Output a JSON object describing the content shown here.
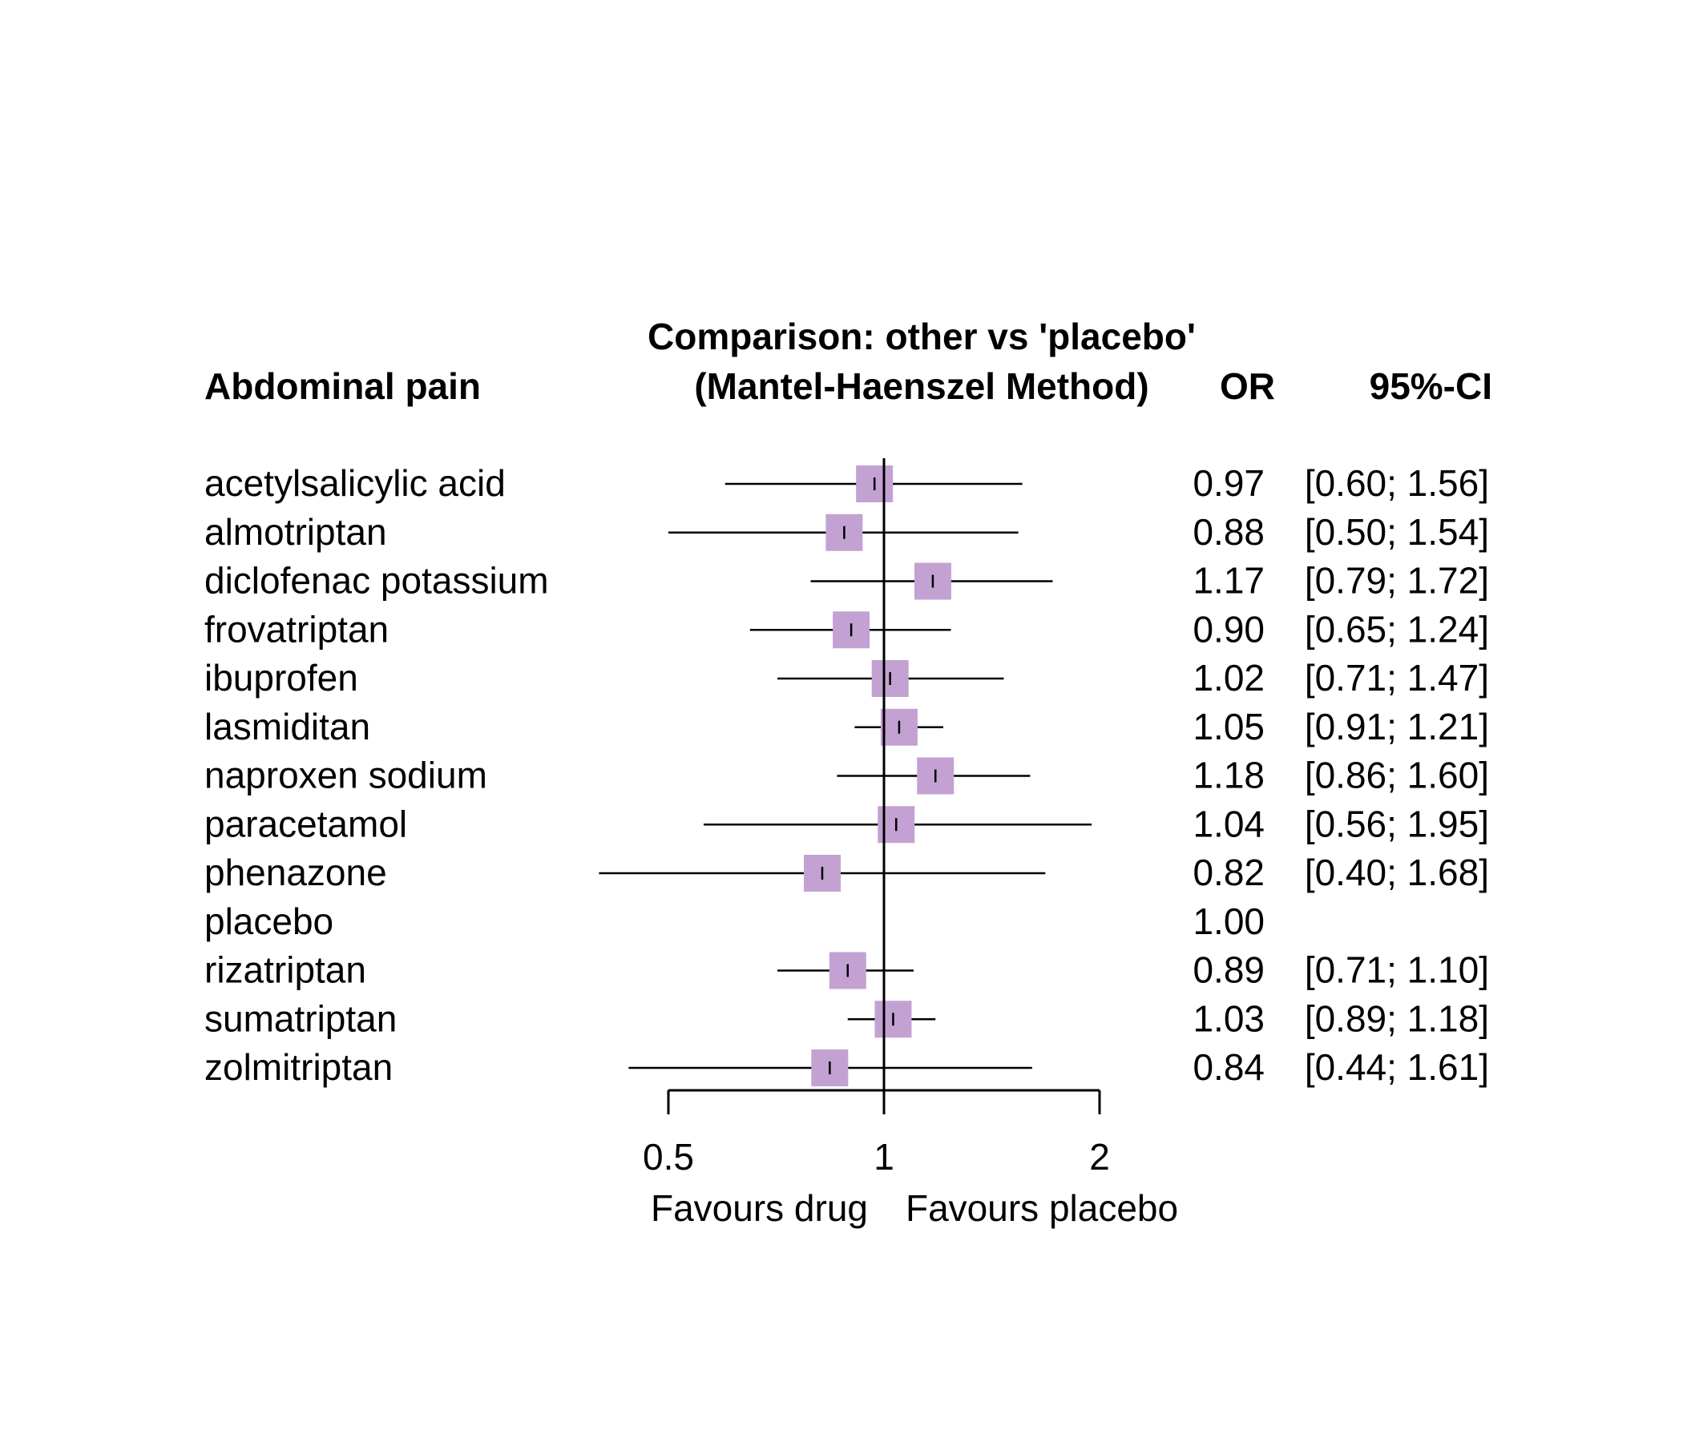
{
  "chart_data": {
    "type": "forest",
    "outcome_label": "Abdominal pain",
    "comparison_title": "Comparison: other vs 'placebo'",
    "method_label": "(Mantel-Haenszel Method)",
    "or_header": "OR",
    "ci_header": "95%-CI",
    "x_scale": "log",
    "xlim": [
      0.5,
      2
    ],
    "reference_value": 1,
    "ticks": [
      {
        "value": 0.5,
        "label": "0.5"
      },
      {
        "value": 1,
        "label": "1"
      },
      {
        "value": 2,
        "label": "2"
      }
    ],
    "left_favours": "Favours drug",
    "right_favours": "Favours placebo",
    "marker_color": "#c3a2d3",
    "rows": [
      {
        "name": "acetylsalicylic acid",
        "or": 0.97,
        "lower": 0.6,
        "upper": 1.56,
        "or_text": "0.97",
        "ci_text": "[0.60; 1.56]",
        "weight": 1
      },
      {
        "name": "almotriptan",
        "or": 0.88,
        "lower": 0.5,
        "upper": 1.54,
        "or_text": "0.88",
        "ci_text": "[0.50; 1.54]",
        "weight": 1
      },
      {
        "name": "diclofenac potassium",
        "or": 1.17,
        "lower": 0.79,
        "upper": 1.72,
        "or_text": "1.17",
        "ci_text": "[0.79; 1.72]",
        "weight": 1
      },
      {
        "name": "frovatriptan",
        "or": 0.9,
        "lower": 0.65,
        "upper": 1.24,
        "or_text": "0.90",
        "ci_text": "[0.65; 1.24]",
        "weight": 1
      },
      {
        "name": "ibuprofen",
        "or": 1.02,
        "lower": 0.71,
        "upper": 1.47,
        "or_text": "1.02",
        "ci_text": "[0.71; 1.47]",
        "weight": 1
      },
      {
        "name": "lasmiditan",
        "or": 1.05,
        "lower": 0.91,
        "upper": 1.21,
        "or_text": "1.05",
        "ci_text": "[0.91; 1.21]",
        "weight": 1
      },
      {
        "name": "naproxen sodium",
        "or": 1.18,
        "lower": 0.86,
        "upper": 1.6,
        "or_text": "1.18",
        "ci_text": "[0.86; 1.60]",
        "weight": 1
      },
      {
        "name": "paracetamol",
        "or": 1.04,
        "lower": 0.56,
        "upper": 1.95,
        "or_text": "1.04",
        "ci_text": "[0.56; 1.95]",
        "weight": 1
      },
      {
        "name": "phenazone",
        "or": 0.82,
        "lower": 0.4,
        "upper": 1.68,
        "or_text": "0.82",
        "ci_text": "[0.40; 1.68]",
        "weight": 1
      },
      {
        "name": "placebo",
        "or": 1.0,
        "lower": null,
        "upper": null,
        "or_text": "1.00",
        "ci_text": "",
        "weight": 0
      },
      {
        "name": "rizatriptan",
        "or": 0.89,
        "lower": 0.71,
        "upper": 1.1,
        "or_text": "0.89",
        "ci_text": "[0.71; 1.10]",
        "weight": 1
      },
      {
        "name": "sumatriptan",
        "or": 1.03,
        "lower": 0.89,
        "upper": 1.18,
        "or_text": "1.03",
        "ci_text": "[0.89; 1.18]",
        "weight": 1
      },
      {
        "name": "zolmitriptan",
        "or": 0.84,
        "lower": 0.44,
        "upper": 1.61,
        "or_text": "0.84",
        "ci_text": "[0.44; 1.61]",
        "weight": 1
      }
    ]
  }
}
